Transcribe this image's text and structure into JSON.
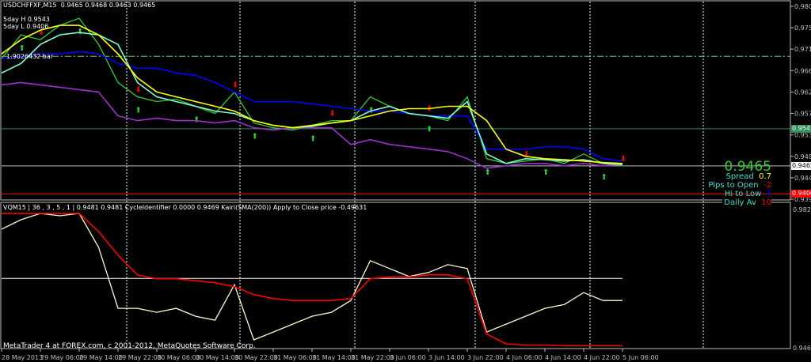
{
  "header": {
    "symbol": "USDCHFFXF,M15",
    "ohlc": "0.9465 0.9468 0.9463 0.9465",
    "five_day_high": "5day H 0.9543",
    "five_day_low": "5day L 0.9406",
    "bar_label": "1.9026432 bar"
  },
  "info_panel": {
    "price": "0.9465",
    "spread_label": "Spread",
    "spread_value": "0.7",
    "pips_label": "Pips to Open",
    "pips_value": "-2",
    "hilo_label": "Hi to Low",
    "hilo_value": "4",
    "daily_label": "Daily Av",
    "daily_value": "10"
  },
  "price_tags": {
    "high": "0.9543",
    "current": "0.9465",
    "low": "0.9406"
  },
  "indicator_header": "VQM15 | 36 , 3 , 5 , 1 | 0.9481 0.9481  CycleIdentifier 0.0000 0.9469  Kairi(SMA(200)) Apply to Close price -0.49631",
  "footer": "MetaTrader 4 at FOREX.com, c 2001-2012, MetaQuotes Software Corp.",
  "colors": {
    "bg": "#000000",
    "price": "#32cd32",
    "ma_yellow": "#ffff00",
    "cyan": "#7fffd4",
    "purple": "#9932cc",
    "blue": "#0000ff",
    "red": "#ff0000",
    "oscillator": "#fffacd",
    "grid": "#ffffff"
  },
  "chart_data": [
    {
      "type": "line",
      "pane": "main",
      "ylim": [
        0.9395,
        0.98
      ],
      "yticks": [
        "0.9800",
        "0.9755",
        "0.9710",
        "0.9665",
        "0.9620",
        "0.9575",
        "0.9530",
        "0.9485",
        "0.9440",
        "0.9395"
      ],
      "xticks": [
        "28 May 2013",
        "29 May 06:00",
        "29 May 14:00",
        "29 May 22:00",
        "30 May 06:00",
        "30 May 14:00",
        "30 May 22:00",
        "31 May 06:00",
        "31 May 14:00",
        "31 May 22:00",
        "3 Jun 06:00",
        "3 Jun 14:00",
        "3 Jun 22:00",
        "4 Jun 06:00",
        "4 Jun 14:00",
        "4 Jun 22:00",
        "5 Jun 06:00"
      ],
      "hlines": {
        "high": 0.9543,
        "current": 0.9465,
        "low": 0.9406,
        "dashdot": 0.9695
      },
      "series": [
        {
          "key": "price",
          "color": "#32cd32",
          "values": [
            0.969,
            0.974,
            0.973,
            0.976,
            0.9775,
            0.972,
            0.964,
            0.961,
            0.96,
            0.9605,
            0.959,
            0.9575,
            0.962,
            0.9555,
            0.9545,
            0.954,
            0.955,
            0.956,
            0.956,
            0.961,
            0.959,
            0.9575,
            0.957,
            0.956,
            0.961,
            0.948,
            0.947,
            0.9475,
            0.948,
            0.947,
            0.949,
            0.947,
            0.9465
          ]
        },
        {
          "key": "purple",
          "color": "#9932cc",
          "values": [
            0.9635,
            0.964,
            0.9635,
            0.963,
            0.9625,
            0.962,
            0.957,
            0.956,
            0.9565,
            0.956,
            0.956,
            0.9555,
            0.956,
            0.9545,
            0.954,
            0.9545,
            0.9545,
            0.9545,
            0.951,
            0.952,
            0.951,
            0.9505,
            0.95,
            0.9495,
            0.948,
            0.946,
            0.9465,
            0.947,
            0.947,
            0.9465,
            0.947,
            0.9465,
            0.9468
          ]
        },
        {
          "key": "blue",
          "color": "#0000ff",
          "values": [
            0.969,
            0.9695,
            0.97,
            0.97,
            0.9705,
            0.97,
            0.968,
            0.967,
            0.967,
            0.966,
            0.9655,
            0.964,
            0.962,
            0.96,
            0.96,
            0.96,
            0.9595,
            0.959,
            0.9585,
            0.958,
            0.958,
            0.9575,
            0.957,
            0.957,
            0.957,
            0.95,
            0.95,
            0.95,
            0.9505,
            0.9505,
            0.95,
            0.948,
            0.9475
          ]
        },
        {
          "key": "cyan",
          "color": "#7fffd4",
          "values": [
            0.966,
            0.968,
            0.972,
            0.974,
            0.9745,
            0.974,
            0.972,
            0.964,
            0.961,
            0.96,
            0.959,
            0.958,
            0.9575,
            0.956,
            0.955,
            0.9545,
            0.9548,
            0.9555,
            0.956,
            0.958,
            0.959,
            0.9575,
            0.957,
            0.9565,
            0.96,
            0.949,
            0.947,
            0.948,
            0.9478,
            0.9475,
            0.9478,
            0.947,
            0.9468
          ]
        },
        {
          "key": "yellow",
          "color": "#ffff00",
          "values": [
            0.97,
            0.973,
            0.975,
            0.976,
            0.976,
            0.974,
            0.97,
            0.965,
            0.962,
            0.961,
            0.96,
            0.959,
            0.958,
            0.956,
            0.955,
            0.9545,
            0.955,
            0.9555,
            0.956,
            0.957,
            0.958,
            0.9585,
            0.9585,
            0.959,
            0.959,
            0.956,
            0.95,
            0.9485,
            0.948,
            0.9478,
            0.9475,
            0.9472,
            0.947
          ]
        }
      ]
    },
    {
      "type": "line",
      "pane": "indicator",
      "ylim": [
        0.9465,
        0.9822
      ],
      "yticks": [
        "0.9822",
        "0.9465"
      ],
      "hlines": {
        "mid": 0.9641
      },
      "series": [
        {
          "key": "oscillator",
          "color": "#fffacd",
          "values": [
            0.9766,
            0.979,
            0.9806,
            0.98,
            0.9806,
            0.972,
            0.9565,
            0.9565,
            0.9555,
            0.9565,
            0.9545,
            0.9535,
            0.9625,
            0.9485,
            0.9505,
            0.9525,
            0.9545,
            0.9555,
            0.9585,
            0.9686,
            0.9666,
            0.9646,
            0.9656,
            0.9676,
            0.9666,
            0.9505,
            0.9525,
            0.9545,
            0.9565,
            0.9575,
            0.9605,
            0.9585,
            0.9585
          ]
        },
        {
          "key": "signal",
          "color": "#ff0000",
          "values": [
            0.9806,
            0.9806,
            0.9806,
            0.9806,
            0.9806,
            0.976,
            0.97,
            0.965,
            0.964,
            0.964,
            0.9635,
            0.963,
            0.962,
            0.96,
            0.959,
            0.9585,
            0.9585,
            0.9585,
            0.959,
            0.964,
            0.9645,
            0.9645,
            0.965,
            0.965,
            0.964,
            0.95,
            0.9475,
            0.9472,
            0.9472,
            0.947,
            0.947,
            0.947,
            0.947
          ]
        }
      ]
    }
  ]
}
